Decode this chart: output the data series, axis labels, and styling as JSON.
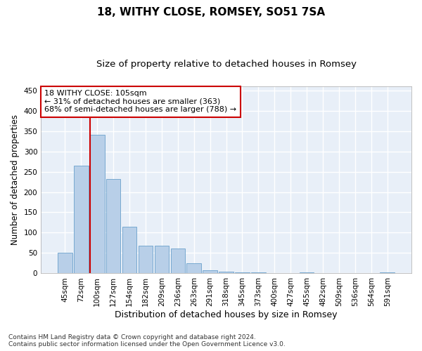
{
  "title": "18, WITHY CLOSE, ROMSEY, SO51 7SA",
  "subtitle": "Size of property relative to detached houses in Romsey",
  "xlabel": "Distribution of detached houses by size in Romsey",
  "ylabel": "Number of detached properties",
  "categories": [
    "45sqm",
    "72sqm",
    "100sqm",
    "127sqm",
    "154sqm",
    "182sqm",
    "209sqm",
    "236sqm",
    "263sqm",
    "291sqm",
    "318sqm",
    "345sqm",
    "373sqm",
    "400sqm",
    "427sqm",
    "455sqm",
    "482sqm",
    "509sqm",
    "536sqm",
    "564sqm",
    "591sqm"
  ],
  "values": [
    50,
    265,
    340,
    232,
    115,
    68,
    68,
    62,
    25,
    7,
    5,
    2,
    2,
    0,
    0,
    2,
    0,
    0,
    0,
    0,
    2
  ],
  "bar_color": "#b8cfe8",
  "bar_edge_color": "#6aa0cc",
  "property_line_color": "#cc0000",
  "annotation_text": "18 WITHY CLOSE: 105sqm\n← 31% of detached houses are smaller (363)\n68% of semi-detached houses are larger (788) →",
  "annotation_box_color": "white",
  "annotation_box_edge_color": "#cc0000",
  "ylim": [
    0,
    460
  ],
  "yticks": [
    0,
    50,
    100,
    150,
    200,
    250,
    300,
    350,
    400,
    450
  ],
  "background_color": "#e8eff8",
  "grid_color": "white",
  "footer_line1": "Contains HM Land Registry data © Crown copyright and database right 2024.",
  "footer_line2": "Contains public sector information licensed under the Open Government Licence v3.0.",
  "title_fontsize": 11,
  "subtitle_fontsize": 9.5,
  "xlabel_fontsize": 9,
  "ylabel_fontsize": 8.5,
  "tick_fontsize": 7.5,
  "annotation_fontsize": 8,
  "footer_fontsize": 6.5
}
